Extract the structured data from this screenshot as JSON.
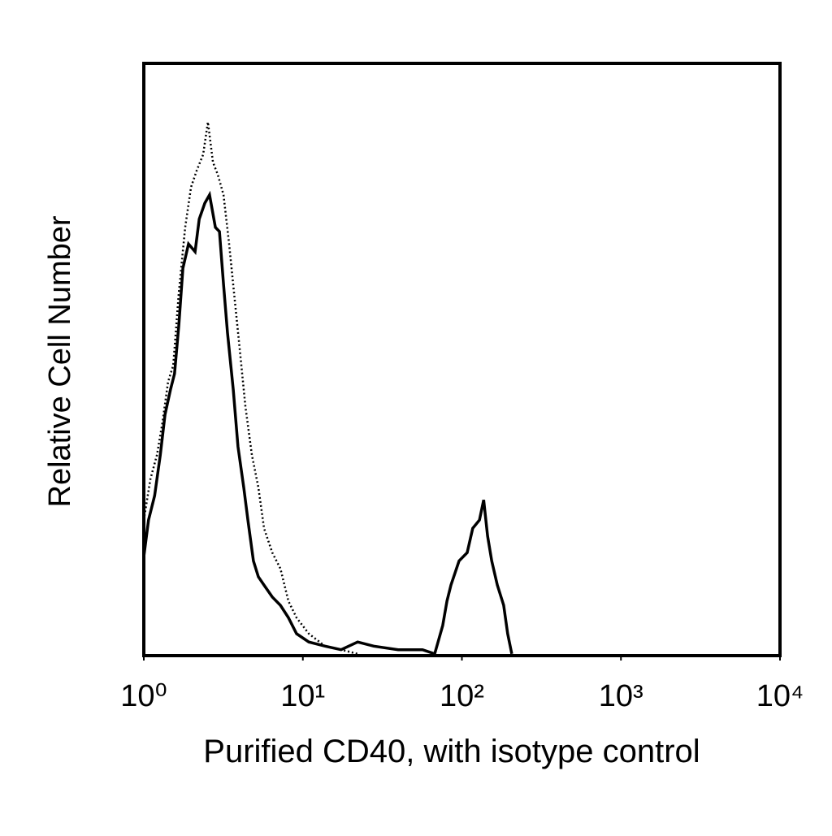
{
  "chart_data": {
    "type": "line",
    "xlabel": "Purified CD40, with isotype control",
    "ylabel": "Relative Cell Number",
    "xscale": "log",
    "xlim": [
      1,
      10000
    ],
    "xticks": [
      {
        "value": 1,
        "label": "10⁰"
      },
      {
        "value": 10,
        "label": "10¹"
      },
      {
        "value": 100,
        "label": "10²"
      },
      {
        "value": 1000,
        "label": "10³"
      },
      {
        "value": 10000,
        "label": "10⁴"
      }
    ],
    "ylim": [
      0,
      100
    ],
    "series": [
      {
        "color": "#000000",
        "linestyle": "solid",
        "x": [
          1.0,
          1.07,
          1.17,
          1.27,
          1.36,
          1.47,
          1.56,
          1.66,
          1.76,
          1.91,
          2.1,
          2.23,
          2.42,
          2.59,
          2.82,
          2.99,
          3.17,
          3.36,
          3.65,
          3.91,
          4.25,
          4.51,
          4.89,
          5.25,
          5.7,
          6.42,
          7.22,
          8.12,
          9.13,
          10.9,
          13.8,
          17.4,
          22.1,
          27.9,
          39.7,
          56.5,
          67.4,
          75.8,
          80.5,
          85.3,
          96.0,
          108,
          117,
          129,
          137,
          145,
          154,
          167,
          183,
          194,
          206
        ],
        "values": [
          16.7,
          22.9,
          27.0,
          33.9,
          40.7,
          44.9,
          47.6,
          55.8,
          65.4,
          69.5,
          68.2,
          73.7,
          76.4,
          77.8,
          72.3,
          71.6,
          62.7,
          54.5,
          44.9,
          35.3,
          28.4,
          22.9,
          16.0,
          13.3,
          11.9,
          9.9,
          8.5,
          6.4,
          3.7,
          2.3,
          1.6,
          1.0,
          2.3,
          1.6,
          1.0,
          1.0,
          0.3,
          5.1,
          9.2,
          11.9,
          16.0,
          17.4,
          21.5,
          22.9,
          26.3,
          20.2,
          16.0,
          11.9,
          8.5,
          3.7,
          0.3
        ]
      },
      {
        "color": "#000000",
        "linestyle": "dotted",
        "x": [
          1.0,
          1.1,
          1.21,
          1.31,
          1.42,
          1.53,
          1.66,
          1.82,
          1.98,
          2.15,
          2.36,
          2.53,
          2.72,
          2.92,
          3.17,
          3.44,
          3.69,
          4.01,
          4.35,
          4.78,
          5.25,
          5.7,
          6.42,
          7.22,
          8.12,
          9.13,
          10.9,
          13.8,
          17.4,
          22.1
        ],
        "values": [
          22.9,
          29.8,
          33.9,
          39.4,
          46.2,
          49.0,
          61.3,
          72.3,
          79.1,
          81.9,
          84.6,
          90.1,
          83.3,
          81.2,
          77.8,
          69.5,
          61.3,
          51.7,
          42.1,
          33.9,
          28.4,
          21.5,
          17.4,
          14.7,
          9.2,
          6.4,
          3.7,
          1.6,
          1.0,
          0.3
        ]
      }
    ]
  }
}
